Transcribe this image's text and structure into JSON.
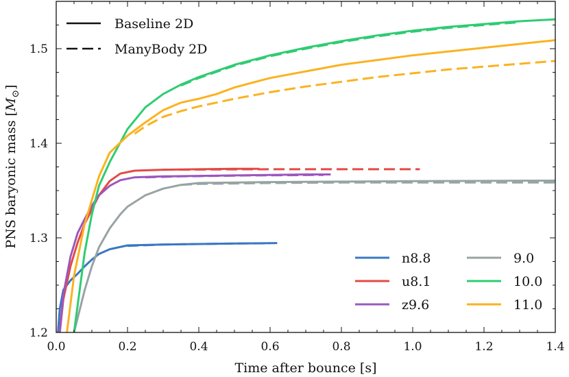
{
  "chart_data": {
    "type": "line",
    "title": "",
    "xlabel": "Time after bounce [s]",
    "ylabel": "PNS baryonic mass [",
    "ylabel_unit": "M",
    "ylabel_unit_sub": "⊙",
    "ylabel_close": "]",
    "xlim": [
      0.0,
      1.4
    ],
    "ylim": [
      1.2,
      1.55
    ],
    "xticks": [
      0.0,
      0.2,
      0.4,
      0.6,
      0.8,
      1.0,
      1.2,
      1.4
    ],
    "xtick_labels": [
      "0.0",
      "0.2",
      "0.4",
      "0.6",
      "0.8",
      "1.0",
      "1.2",
      "1.4"
    ],
    "yticks": [
      1.2,
      1.3,
      1.4,
      1.5
    ],
    "ytick_labels": [
      "1.2",
      "1.3",
      "1.4",
      "1.5"
    ],
    "grid": false,
    "style_legend": {
      "placement": "top-left",
      "entries": [
        {
          "label": "Baseline 2D",
          "dash": "solid"
        },
        {
          "label": "ManyBody 2D",
          "dash": "dashed"
        }
      ]
    },
    "model_legend": {
      "placement": "bottom-right",
      "entries": [
        {
          "label": "n8.8",
          "color": "#3a78c2"
        },
        {
          "label": "u8.1",
          "color": "#e34a44"
        },
        {
          "label": "z9.6",
          "color": "#9c57bd"
        },
        {
          "label": "9.0",
          "color": "#98a3a3"
        },
        {
          "label": "10.0",
          "color": "#2ecc71"
        },
        {
          "label": "11.0",
          "color": "#fbb220"
        }
      ]
    },
    "series": [
      {
        "name": "n8.8 Baseline 2D",
        "model": "n8.8",
        "color": "#3a78c2",
        "dash": "solid",
        "x": [
          0.005,
          0.01,
          0.02,
          0.04,
          0.06,
          0.08,
          0.1,
          0.12,
          0.15,
          0.2,
          0.3,
          0.4,
          0.5,
          0.62
        ],
        "y": [
          1.2,
          1.225,
          1.245,
          1.255,
          1.262,
          1.27,
          1.277,
          1.283,
          1.288,
          1.292,
          1.293,
          1.2935,
          1.294,
          1.2945
        ]
      },
      {
        "name": "n8.8 ManyBody 2D",
        "model": "n8.8",
        "color": "#3a78c2",
        "dash": "dashed",
        "x": [
          0.2,
          0.3,
          0.4,
          0.5,
          0.6
        ],
        "y": [
          1.2915,
          1.293,
          1.2935,
          1.294,
          1.2943
        ]
      },
      {
        "name": "u8.1 Baseline 2D",
        "model": "u8.1",
        "color": "#e34a44",
        "dash": "solid",
        "x": [
          0.01,
          0.02,
          0.04,
          0.06,
          0.08,
          0.1,
          0.12,
          0.15,
          0.18,
          0.22,
          0.3,
          0.4,
          0.5,
          0.57
        ],
        "y": [
          1.2,
          1.235,
          1.27,
          1.295,
          1.315,
          1.33,
          1.345,
          1.36,
          1.368,
          1.371,
          1.372,
          1.3725,
          1.373,
          1.373
        ]
      },
      {
        "name": "u8.1 ManyBody 2D",
        "model": "u8.1",
        "color": "#e34a44",
        "dash": "dashed",
        "x": [
          0.3,
          0.4,
          0.5,
          0.6,
          0.7,
          0.8,
          0.9,
          1.0,
          1.02
        ],
        "y": [
          1.372,
          1.3722,
          1.3724,
          1.3725,
          1.3725,
          1.3725,
          1.3725,
          1.3725,
          1.3725
        ]
      },
      {
        "name": "z9.6 Baseline 2D",
        "model": "z9.6",
        "color": "#9c57bd",
        "dash": "solid",
        "x": [
          0.01,
          0.02,
          0.04,
          0.06,
          0.08,
          0.1,
          0.12,
          0.15,
          0.18,
          0.22,
          0.3,
          0.4,
          0.5,
          0.6,
          0.7,
          0.77
        ],
        "y": [
          1.2,
          1.24,
          1.28,
          1.305,
          1.32,
          1.334,
          1.345,
          1.355,
          1.361,
          1.364,
          1.365,
          1.3655,
          1.366,
          1.3665,
          1.367,
          1.367
        ]
      },
      {
        "name": "z9.6 ManyBody 2D",
        "model": "z9.6",
        "color": "#9c57bd",
        "dash": "dashed",
        "x": [
          0.25,
          0.35,
          0.45,
          0.55,
          0.65,
          0.75
        ],
        "y": [
          1.364,
          1.365,
          1.3655,
          1.366,
          1.3662,
          1.3665
        ]
      },
      {
        "name": "9.0 Baseline 2D",
        "model": "9.0",
        "color": "#98a3a3",
        "dash": "solid",
        "x": [
          0.05,
          0.06,
          0.08,
          0.1,
          0.12,
          0.15,
          0.18,
          0.2,
          0.25,
          0.3,
          0.35,
          0.4,
          0.6,
          0.8,
          1.0,
          1.2,
          1.4
        ],
        "y": [
          1.2,
          1.215,
          1.245,
          1.27,
          1.29,
          1.31,
          1.325,
          1.333,
          1.345,
          1.352,
          1.356,
          1.358,
          1.359,
          1.3595,
          1.36,
          1.3602,
          1.3605
        ]
      },
      {
        "name": "9.0 ManyBody 2D",
        "model": "9.0",
        "color": "#98a3a3",
        "dash": "dashed",
        "x": [
          0.35,
          0.4,
          0.6,
          0.8,
          1.0,
          1.2,
          1.4
        ],
        "y": [
          1.356,
          1.357,
          1.358,
          1.3585,
          1.3585,
          1.3585,
          1.3585
        ]
      },
      {
        "name": "10.0 Baseline 2D",
        "model": "10.0",
        "color": "#2ecc71",
        "dash": "solid",
        "x": [
          0.05,
          0.08,
          0.1,
          0.12,
          0.15,
          0.2,
          0.25,
          0.3,
          0.35,
          0.4,
          0.5,
          0.6,
          0.7,
          0.8,
          0.9,
          1.0,
          1.1,
          1.2,
          1.3,
          1.4
        ],
        "y": [
          1.2,
          1.285,
          1.325,
          1.355,
          1.38,
          1.415,
          1.438,
          1.452,
          1.462,
          1.47,
          1.483,
          1.493,
          1.501,
          1.508,
          1.514,
          1.519,
          1.523,
          1.526,
          1.529,
          1.531
        ]
      },
      {
        "name": "10.0 ManyBody 2D",
        "model": "10.0",
        "color": "#2ecc71",
        "dash": "dashed",
        "x": [
          0.35,
          0.4,
          0.5,
          0.6,
          0.7,
          0.8,
          0.9,
          1.0,
          1.1,
          1.2,
          1.3
        ],
        "y": [
          1.461,
          1.469,
          1.482,
          1.492,
          1.5,
          1.507,
          1.513,
          1.518,
          1.522,
          1.525,
          1.528
        ]
      },
      {
        "name": "11.0 Baseline 2D",
        "model": "11.0",
        "color": "#fbb220",
        "dash": "solid",
        "x": [
          0.03,
          0.05,
          0.08,
          0.1,
          0.12,
          0.15,
          0.2,
          0.25,
          0.3,
          0.35,
          0.4,
          0.45,
          0.5,
          0.6,
          0.7,
          0.8,
          0.9,
          1.0,
          1.1,
          1.2,
          1.3,
          1.4
        ],
        "y": [
          1.2,
          1.26,
          1.315,
          1.34,
          1.365,
          1.39,
          1.408,
          1.422,
          1.435,
          1.443,
          1.447,
          1.452,
          1.459,
          1.469,
          1.476,
          1.483,
          1.488,
          1.493,
          1.497,
          1.501,
          1.505,
          1.509
        ]
      },
      {
        "name": "11.0 ManyBody 2D",
        "model": "11.0",
        "color": "#fbb220",
        "dash": "dashed",
        "x": [
          0.22,
          0.25,
          0.3,
          0.35,
          0.4,
          0.5,
          0.6,
          0.7,
          0.8,
          0.9,
          1.0,
          1.1,
          1.2,
          1.3,
          1.4
        ],
        "y": [
          1.41,
          1.418,
          1.428,
          1.434,
          1.439,
          1.447,
          1.454,
          1.46,
          1.465,
          1.47,
          1.474,
          1.478,
          1.481,
          1.484,
          1.487
        ]
      }
    ]
  }
}
